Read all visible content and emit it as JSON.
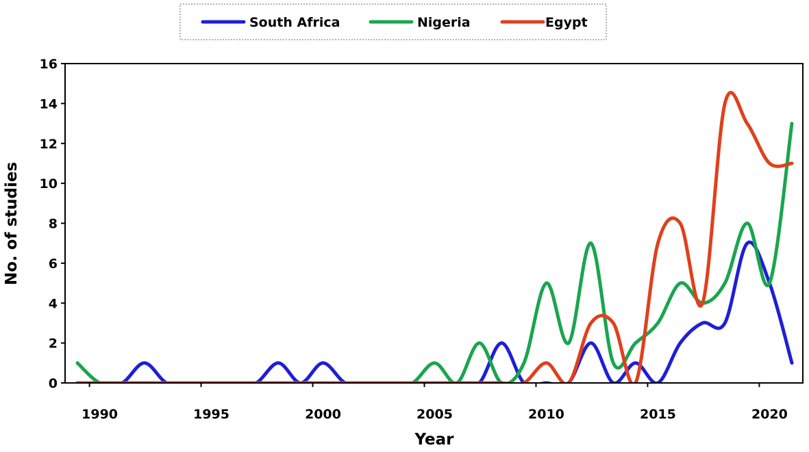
{
  "chart_data": {
    "type": "line",
    "xlabel": "Year",
    "ylabel": "No. of studies",
    "xlim": [
      1989,
      2021
    ],
    "ylim": [
      0,
      16
    ],
    "x_ticks": [
      1990,
      1995,
      2000,
      2005,
      2010,
      2015,
      2020
    ],
    "y_ticks": [
      0,
      2,
      4,
      6,
      8,
      10,
      12,
      14,
      16
    ],
    "smooth": true,
    "legend_position": "top-center",
    "x": [
      1989,
      1990,
      1991,
      1992,
      1993,
      1994,
      1995,
      1996,
      1997,
      1998,
      1999,
      2000,
      2001,
      2002,
      2003,
      2004,
      2005,
      2006,
      2007,
      2008,
      2009,
      2010,
      2011,
      2012,
      2013,
      2014,
      2015,
      2016,
      2017,
      2018,
      2019,
      2020,
      2021
    ],
    "series": [
      {
        "name": "South Africa",
        "color": "#1f1fd6",
        "values": [
          0,
          0,
          0,
          1,
          0,
          0,
          0,
          0,
          0,
          1,
          0,
          1,
          0,
          0,
          0,
          0,
          0,
          0,
          0,
          2,
          0,
          0,
          0,
          2,
          0,
          1,
          0,
          2,
          3,
          3,
          7,
          5,
          1
        ]
      },
      {
        "name": "Nigeria",
        "color": "#1aa54f",
        "values": [
          1,
          0,
          0,
          0,
          0,
          0,
          0,
          0,
          0,
          0,
          0,
          0,
          0,
          0,
          0,
          0,
          1,
          0,
          2,
          0,
          1,
          5,
          2,
          7,
          1,
          2,
          3,
          5,
          4,
          5,
          8,
          5,
          13
        ]
      },
      {
        "name": "Egypt",
        "color": "#e0401c",
        "values": [
          0,
          0,
          0,
          0,
          0,
          0,
          0,
          0,
          0,
          0,
          0,
          0,
          0,
          0,
          0,
          0,
          0,
          0,
          0,
          0,
          0,
          1,
          0,
          3,
          3,
          0,
          7,
          8,
          4,
          14,
          13,
          11,
          11
        ]
      }
    ]
  }
}
